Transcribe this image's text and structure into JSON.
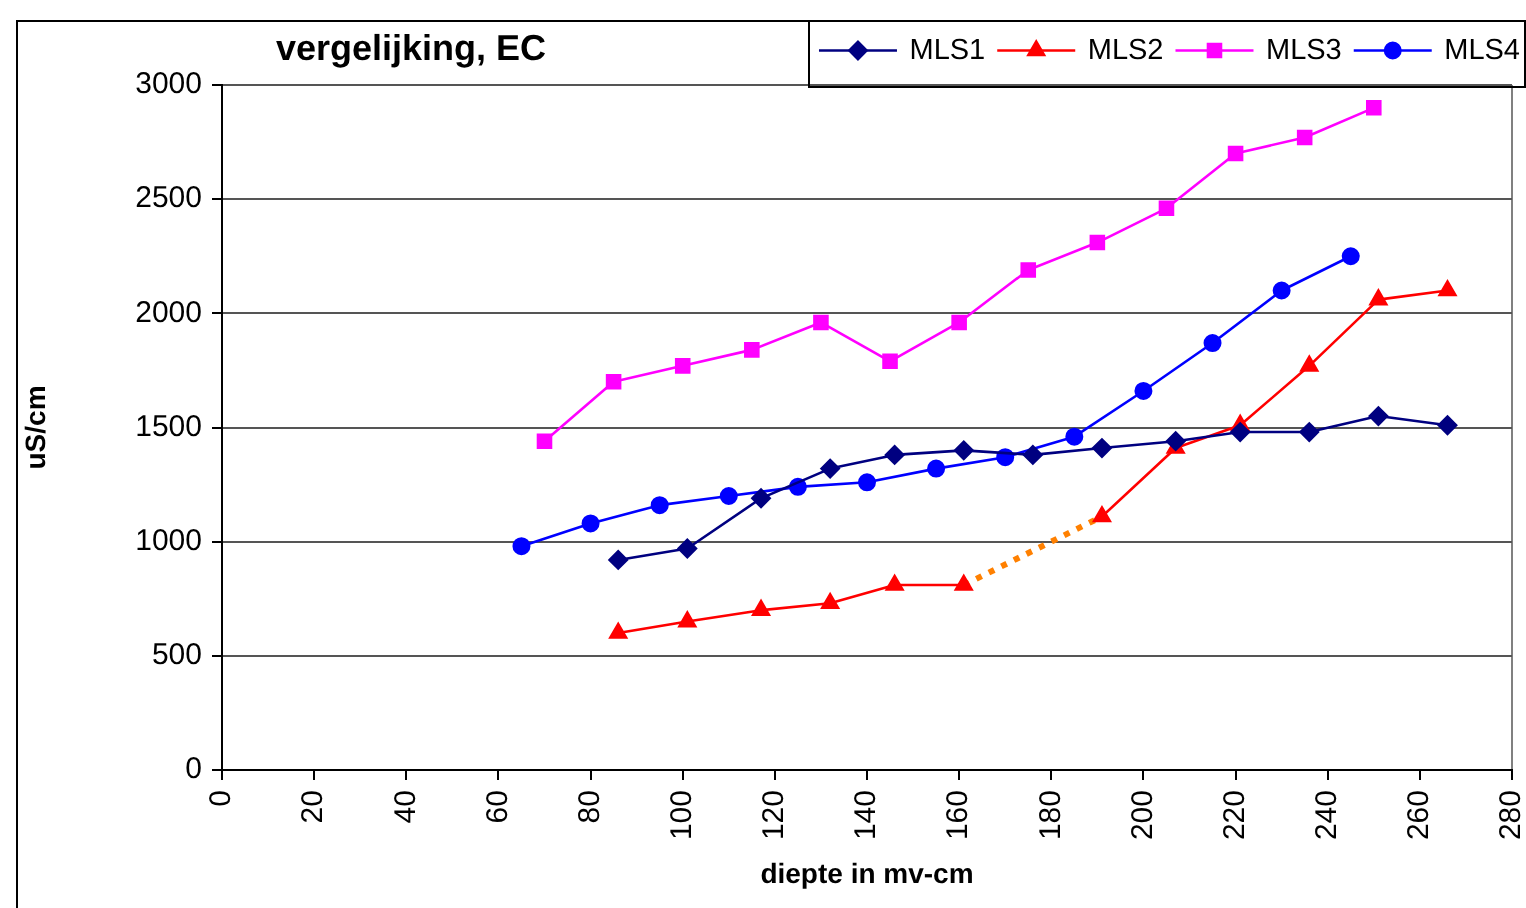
{
  "chart_data": {
    "type": "line",
    "title": "vergelijking, EC",
    "xlabel": "diepte in mv-cm",
    "ylabel": "uS/cm",
    "xlim": [
      0,
      280
    ],
    "xticks": [
      0,
      20,
      40,
      60,
      80,
      100,
      120,
      140,
      160,
      180,
      200,
      220,
      240,
      260,
      280
    ],
    "ylim": [
      0,
      3000
    ],
    "yticks": [
      0,
      500,
      1000,
      1500,
      2000,
      2500,
      3000
    ],
    "grid": "y",
    "legend": "top right",
    "series": [
      {
        "name": "MLS1",
        "color": "#000080",
        "marker": "diamond",
        "x": [
          86,
          101,
          117,
          132,
          146,
          161,
          176,
          191,
          207,
          221,
          236,
          251,
          266
        ],
        "values": [
          920,
          970,
          1190,
          1320,
          1380,
          1400,
          1380,
          1410,
          1440,
          1480,
          1480,
          1550,
          1510
        ]
      },
      {
        "name": "MLS2",
        "color": "#ff0000",
        "marker": "triangle",
        "x": [
          86,
          101,
          117,
          132,
          146,
          161,
          176,
          191,
          207,
          221,
          236,
          251,
          266
        ],
        "values": [
          600,
          650,
          700,
          730,
          810,
          810,
          null,
          1110,
          1410,
          1510,
          1770,
          2060,
          2100
        ]
      },
      {
        "name": "MLS3",
        "color": "#ff00ff",
        "marker": "square",
        "x": [
          70,
          85,
          100,
          115,
          130,
          145,
          160,
          175,
          190,
          205,
          220,
          235,
          250
        ],
        "values": [
          1440,
          1700,
          1770,
          1840,
          1960,
          1790,
          1960,
          2190,
          2310,
          2460,
          2700,
          2770,
          2900
        ]
      },
      {
        "name": "MLS4",
        "color": "#0000ff",
        "marker": "circle",
        "x": [
          65,
          80,
          95,
          110,
          125,
          140,
          155,
          170,
          185,
          200,
          215,
          230,
          245
        ],
        "values": [
          980,
          1080,
          1160,
          1200,
          1240,
          1260,
          1320,
          1370,
          1460,
          1660,
          1870,
          2100,
          2250
        ]
      },
      {
        "color": "#ff8000",
        "marker": "none",
        "line_style": "dotted",
        "x": [
          161,
          191
        ],
        "values": [
          810,
          1110
        ]
      }
    ]
  }
}
